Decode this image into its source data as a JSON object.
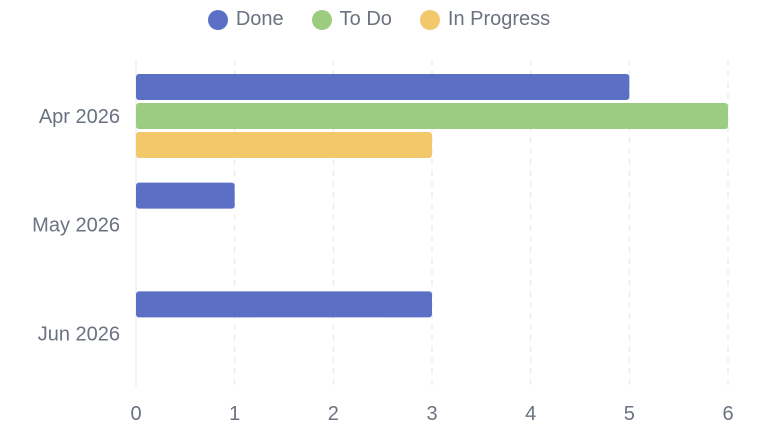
{
  "chart_data": {
    "type": "bar",
    "orientation": "horizontal",
    "categories": [
      "Apr 2026",
      "May 2026",
      "Jun 2026"
    ],
    "series": [
      {
        "name": "Done",
        "color": "#5b6fc4",
        "values": [
          5,
          1,
          3
        ]
      },
      {
        "name": "To Do",
        "color": "#9ccc80",
        "values": [
          6,
          0,
          0
        ]
      },
      {
        "name": "In Progress",
        "color": "#f2c86b",
        "values": [
          3,
          0,
          0
        ]
      }
    ],
    "x_ticks": [
      "0",
      "1",
      "2",
      "3",
      "4",
      "5",
      "6"
    ],
    "xlim": [
      0,
      6
    ],
    "grid": "vertical dashed",
    "legend_position": "top-center"
  }
}
